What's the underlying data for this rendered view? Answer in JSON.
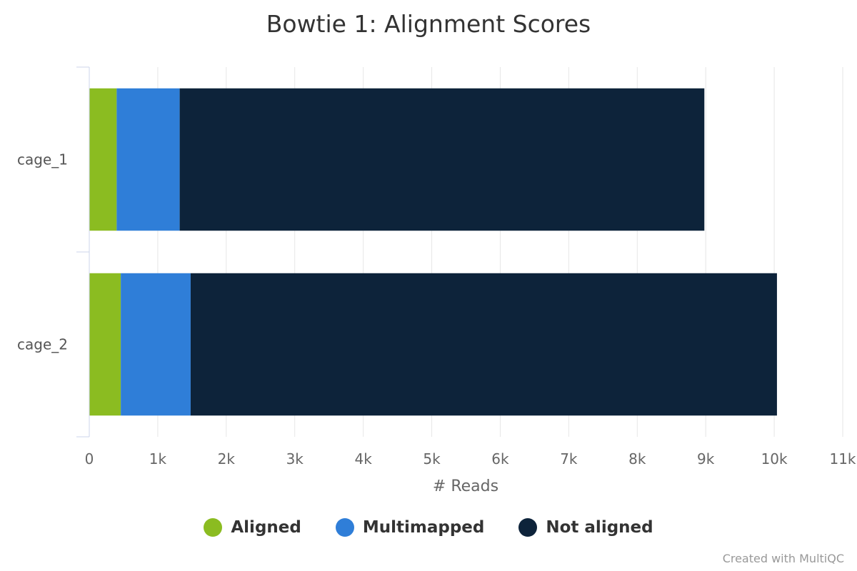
{
  "chart_data": {
    "type": "bar",
    "orientation": "horizontal",
    "stacked": true,
    "title": "Bowtie 1: Alignment Scores",
    "xlabel": "# Reads",
    "ylabel": "",
    "categories": [
      "cage_1",
      "cage_2"
    ],
    "series": [
      {
        "name": "Aligned",
        "color": "#8bbc21",
        "values": [
          400,
          460
        ]
      },
      {
        "name": "Multimapped",
        "color": "#2f7ed8",
        "values": [
          920,
          1020
        ]
      },
      {
        "name": "Not aligned",
        "color": "#0d233a",
        "values": [
          7660,
          8560
        ]
      }
    ],
    "xlim": [
      0,
      11000
    ],
    "xticks": [
      0,
      1000,
      2000,
      3000,
      4000,
      5000,
      6000,
      7000,
      8000,
      9000,
      10000,
      11000
    ],
    "xtick_labels": [
      "0",
      "1k",
      "2k",
      "3k",
      "4k",
      "5k",
      "6k",
      "7k",
      "8k",
      "9k",
      "10k",
      "11k"
    ],
    "grid": "vertical",
    "legend": "bottom-center"
  },
  "credits": "Created with MultiQC"
}
